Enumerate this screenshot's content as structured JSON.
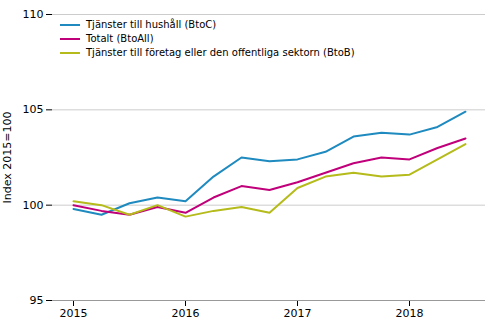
{
  "chart_data": {
    "type": "line",
    "ylabel": "Index 2015=100",
    "categories": [
      "2015",
      null,
      null,
      null,
      "2016",
      null,
      null,
      null,
      "2017",
      null,
      null,
      null,
      "2018",
      null,
      null
    ],
    "series": [
      {
        "name": "Tjänster till hushåll (BtoC)",
        "color": "#1e8abf",
        "values": [
          99.8,
          99.5,
          100.1,
          100.4,
          100.2,
          101.5,
          102.5,
          102.3,
          102.4,
          102.8,
          103.6,
          103.8,
          103.7,
          104.1,
          104.9
        ]
      },
      {
        "name": "Totalt (BtoAll)",
        "color": "#c0007a",
        "values": [
          100.0,
          99.7,
          99.5,
          99.9,
          99.6,
          100.4,
          101.0,
          100.8,
          101.2,
          101.7,
          102.2,
          102.5,
          102.4,
          103.0,
          103.5
        ]
      },
      {
        "name": "Tjänster till företag eller den offentliga sektorn (BtoB)",
        "color": "#b5bb1a",
        "values": [
          100.2,
          100.0,
          99.5,
          100.0,
          99.4,
          99.7,
          99.9,
          99.6,
          100.9,
          101.5,
          101.7,
          101.5,
          101.6,
          102.4,
          103.2
        ]
      }
    ],
    "ylim": [
      95,
      110
    ],
    "yticks": [
      95,
      100,
      105,
      110
    ],
    "grid": true,
    "legend": "upper left"
  }
}
